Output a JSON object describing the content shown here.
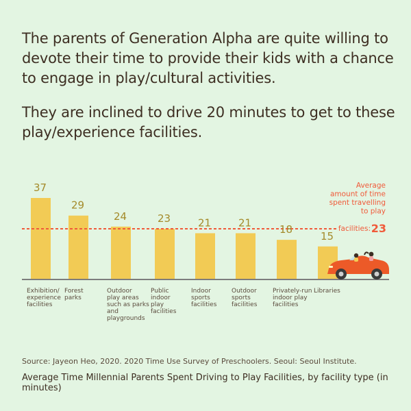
{
  "headline_1": "The parents of Generation Alpha are quite willing to devote their time to provide their kids with a chance to engage in play/cultural activities.",
  "headline_2": "They are inclined to drive 20 minutes to get to these play/experience facilities.",
  "source": "Source: Jayeon Heo, 2020. 2020 Time Use Survey of Preschoolers. Seoul: Seoul Institute.",
  "caption": "Average Time Millennial Parents Spent Driving to Play Facilities, by facility type (in minutes)",
  "colors": {
    "bar": "#f2cb55",
    "value_label": "#a48a2a",
    "average_line": "#f05a3a",
    "axis": "#7d7d7d",
    "car": "#ec5a28"
  },
  "chart_data": {
    "type": "bar",
    "categories": [
      [
        "Exhibition/",
        "experience",
        "facilities"
      ],
      [
        "Forest",
        "parks"
      ],
      [
        "Outdoor",
        "play areas",
        "such as parks",
        "and",
        "playgrounds"
      ],
      [
        "Public",
        "indoor",
        "play",
        "facilities"
      ],
      [
        "Indoor",
        "sports",
        "facilities"
      ],
      [
        "Outdoor",
        "sports",
        "facilities"
      ],
      [
        "Privately-run",
        "indoor play",
        "facilities"
      ],
      [
        "Libraries"
      ]
    ],
    "values": [
      37,
      29,
      24,
      23,
      21,
      21,
      18,
      15
    ],
    "ylim": [
      0,
      40
    ],
    "average": {
      "value": 23,
      "label_lines": [
        "Average",
        "amount of time",
        "spent travelling",
        "to play"
      ],
      "label_last": "facilities:"
    },
    "grid": false,
    "legend": "none",
    "decoration": "car-icon"
  }
}
